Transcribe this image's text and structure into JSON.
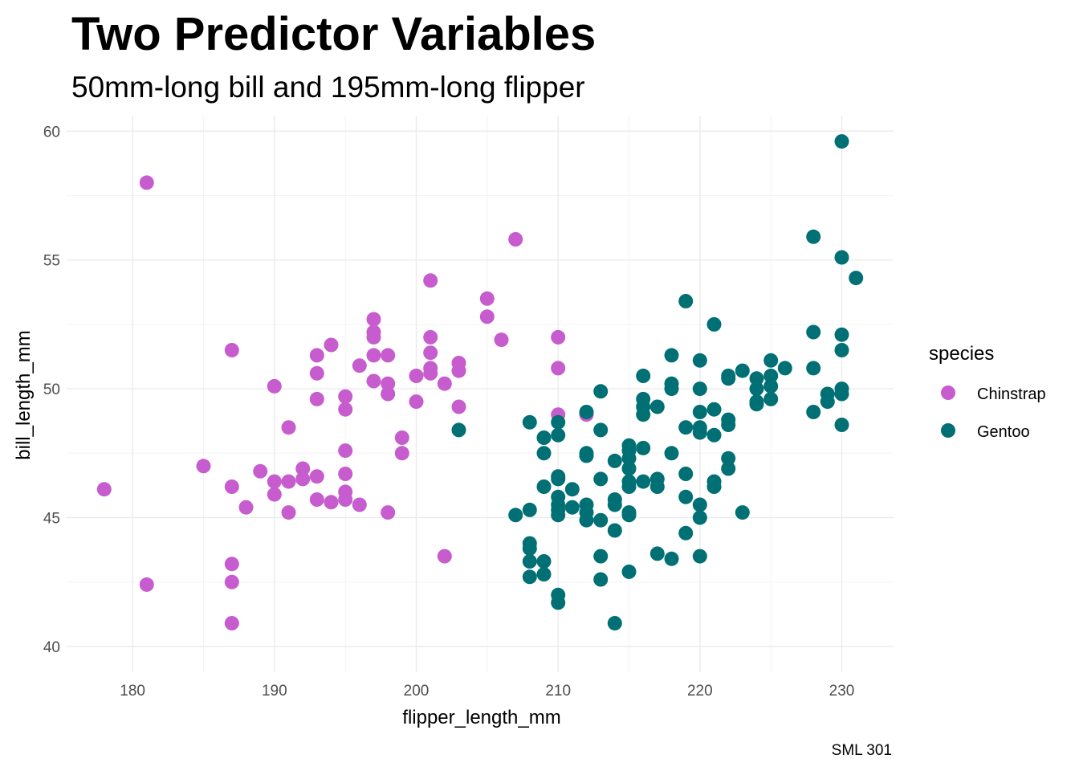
{
  "chart_data": {
    "type": "scatter",
    "title": "Two Predictor Variables",
    "subtitle": "50mm-long bill and 195mm-long flipper",
    "xlabel": "flipper_length_mm",
    "ylabel": "bill_length_mm",
    "caption": "SML 301",
    "xlim": [
      175.35,
      233.65
    ],
    "ylim": [
      39.0,
      60.6
    ],
    "x_ticks": [
      180,
      190,
      200,
      210,
      220,
      230
    ],
    "y_ticks": [
      40,
      45,
      50,
      55,
      60
    ],
    "grid": true,
    "legend": {
      "title": "species",
      "position": "right"
    },
    "series": [
      {
        "name": "Chinstrap",
        "color": "#c65ccd",
        "points": [
          [
            178,
            46.1
          ],
          [
            181,
            58.0
          ],
          [
            181,
            42.4
          ],
          [
            185,
            47.0
          ],
          [
            187,
            51.5
          ],
          [
            187,
            46.2
          ],
          [
            187,
            43.2
          ],
          [
            187,
            42.5
          ],
          [
            187,
            40.9
          ],
          [
            188,
            45.4
          ],
          [
            189,
            46.8
          ],
          [
            190,
            50.1
          ],
          [
            190,
            46.4
          ],
          [
            190,
            45.9
          ],
          [
            191,
            48.5
          ],
          [
            191,
            46.4
          ],
          [
            191,
            45.2
          ],
          [
            192,
            46.9
          ],
          [
            192,
            46.5
          ],
          [
            193,
            51.3
          ],
          [
            193,
            50.6
          ],
          [
            193,
            49.6
          ],
          [
            193,
            46.6
          ],
          [
            193,
            45.7
          ],
          [
            194,
            51.7
          ],
          [
            194,
            45.6
          ],
          [
            195,
            49.7
          ],
          [
            195,
            49.2
          ],
          [
            195,
            47.6
          ],
          [
            195,
            46.7
          ],
          [
            195,
            46.0
          ],
          [
            195,
            45.7
          ],
          [
            196,
            50.9
          ],
          [
            196,
            45.5
          ],
          [
            197,
            52.7
          ],
          [
            197,
            52.2
          ],
          [
            197,
            52.0
          ],
          [
            197,
            51.3
          ],
          [
            197,
            50.3
          ],
          [
            198,
            51.3
          ],
          [
            198,
            50.2
          ],
          [
            198,
            49.8
          ],
          [
            198,
            45.2
          ],
          [
            199,
            48.1
          ],
          [
            199,
            47.5
          ],
          [
            200,
            50.5
          ],
          [
            200,
            49.5
          ],
          [
            201,
            54.2
          ],
          [
            201,
            52.0
          ],
          [
            201,
            51.4
          ],
          [
            201,
            50.8
          ],
          [
            201,
            50.6
          ],
          [
            202,
            50.2
          ],
          [
            202,
            43.5
          ],
          [
            203,
            51.0
          ],
          [
            203,
            50.7
          ],
          [
            203,
            49.3
          ],
          [
            205,
            53.5
          ],
          [
            205,
            52.8
          ],
          [
            206,
            51.9
          ],
          [
            207,
            55.8
          ],
          [
            210,
            52.0
          ],
          [
            210,
            50.8
          ],
          [
            210,
            49.0
          ],
          [
            212,
            49.0
          ]
        ]
      },
      {
        "name": "Gentoo",
        "color": "#007075",
        "points": [
          [
            203,
            48.4
          ],
          [
            207,
            45.1
          ],
          [
            208,
            48.7
          ],
          [
            208,
            45.3
          ],
          [
            208,
            44.0
          ],
          [
            208,
            43.8
          ],
          [
            208,
            43.3
          ],
          [
            208,
            42.7
          ],
          [
            209,
            48.1
          ],
          [
            209,
            47.5
          ],
          [
            209,
            46.2
          ],
          [
            209,
            43.3
          ],
          [
            209,
            42.8
          ],
          [
            210,
            48.7
          ],
          [
            210,
            48.2
          ],
          [
            210,
            46.6
          ],
          [
            210,
            46.5
          ],
          [
            210,
            45.8
          ],
          [
            210,
            45.5
          ],
          [
            210,
            45.3
          ],
          [
            210,
            45.1
          ],
          [
            210,
            42.0
          ],
          [
            210,
            41.7
          ],
          [
            211,
            46.1
          ],
          [
            211,
            45.4
          ],
          [
            212,
            49.1
          ],
          [
            212,
            47.5
          ],
          [
            212,
            47.4
          ],
          [
            212,
            45.5
          ],
          [
            212,
            45.2
          ],
          [
            212,
            44.9
          ],
          [
            213,
            49.9
          ],
          [
            213,
            48.4
          ],
          [
            213,
            46.5
          ],
          [
            213,
            44.9
          ],
          [
            213,
            43.5
          ],
          [
            213,
            42.6
          ],
          [
            214,
            47.2
          ],
          [
            214,
            45.7
          ],
          [
            214,
            45.5
          ],
          [
            214,
            44.5
          ],
          [
            214,
            40.9
          ],
          [
            215,
            47.8
          ],
          [
            215,
            47.6
          ],
          [
            215,
            47.3
          ],
          [
            215,
            46.9
          ],
          [
            215,
            46.4
          ],
          [
            215,
            46.2
          ],
          [
            215,
            45.2
          ],
          [
            215,
            45.1
          ],
          [
            215,
            42.9
          ],
          [
            216,
            50.5
          ],
          [
            216,
            49.6
          ],
          [
            216,
            49.3
          ],
          [
            216,
            49.0
          ],
          [
            216,
            47.7
          ],
          [
            216,
            46.4
          ],
          [
            217,
            49.3
          ],
          [
            217,
            46.5
          ],
          [
            217,
            46.2
          ],
          [
            217,
            43.6
          ],
          [
            218,
            51.3
          ],
          [
            218,
            50.2
          ],
          [
            218,
            50.0
          ],
          [
            218,
            47.5
          ],
          [
            218,
            43.4
          ],
          [
            219,
            53.4
          ],
          [
            219,
            48.5
          ],
          [
            219,
            46.7
          ],
          [
            219,
            45.8
          ],
          [
            219,
            44.4
          ],
          [
            220,
            51.1
          ],
          [
            220,
            50.0
          ],
          [
            220,
            49.1
          ],
          [
            220,
            48.5
          ],
          [
            220,
            48.3
          ],
          [
            220,
            45.5
          ],
          [
            220,
            45.0
          ],
          [
            220,
            43.5
          ],
          [
            221,
            52.5
          ],
          [
            221,
            49.2
          ],
          [
            221,
            48.2
          ],
          [
            221,
            46.4
          ],
          [
            221,
            46.2
          ],
          [
            222,
            50.5
          ],
          [
            222,
            50.4
          ],
          [
            222,
            48.8
          ],
          [
            222,
            48.6
          ],
          [
            222,
            47.3
          ],
          [
            222,
            46.9
          ],
          [
            223,
            50.7
          ],
          [
            223,
            45.2
          ],
          [
            224,
            50.4
          ],
          [
            224,
            50.0
          ],
          [
            224,
            49.5
          ],
          [
            224,
            49.4
          ],
          [
            225,
            51.1
          ],
          [
            225,
            50.5
          ],
          [
            225,
            50.1
          ],
          [
            225,
            49.6
          ],
          [
            226,
            50.8
          ],
          [
            228,
            55.9
          ],
          [
            228,
            52.2
          ],
          [
            228,
            50.8
          ],
          [
            228,
            49.1
          ],
          [
            229,
            49.8
          ],
          [
            229,
            49.5
          ],
          [
            230,
            59.6
          ],
          [
            230,
            55.1
          ],
          [
            230,
            52.1
          ],
          [
            230,
            51.5
          ],
          [
            230,
            50.0
          ],
          [
            230,
            49.8
          ],
          [
            230,
            48.6
          ],
          [
            231,
            54.3
          ]
        ]
      }
    ]
  }
}
